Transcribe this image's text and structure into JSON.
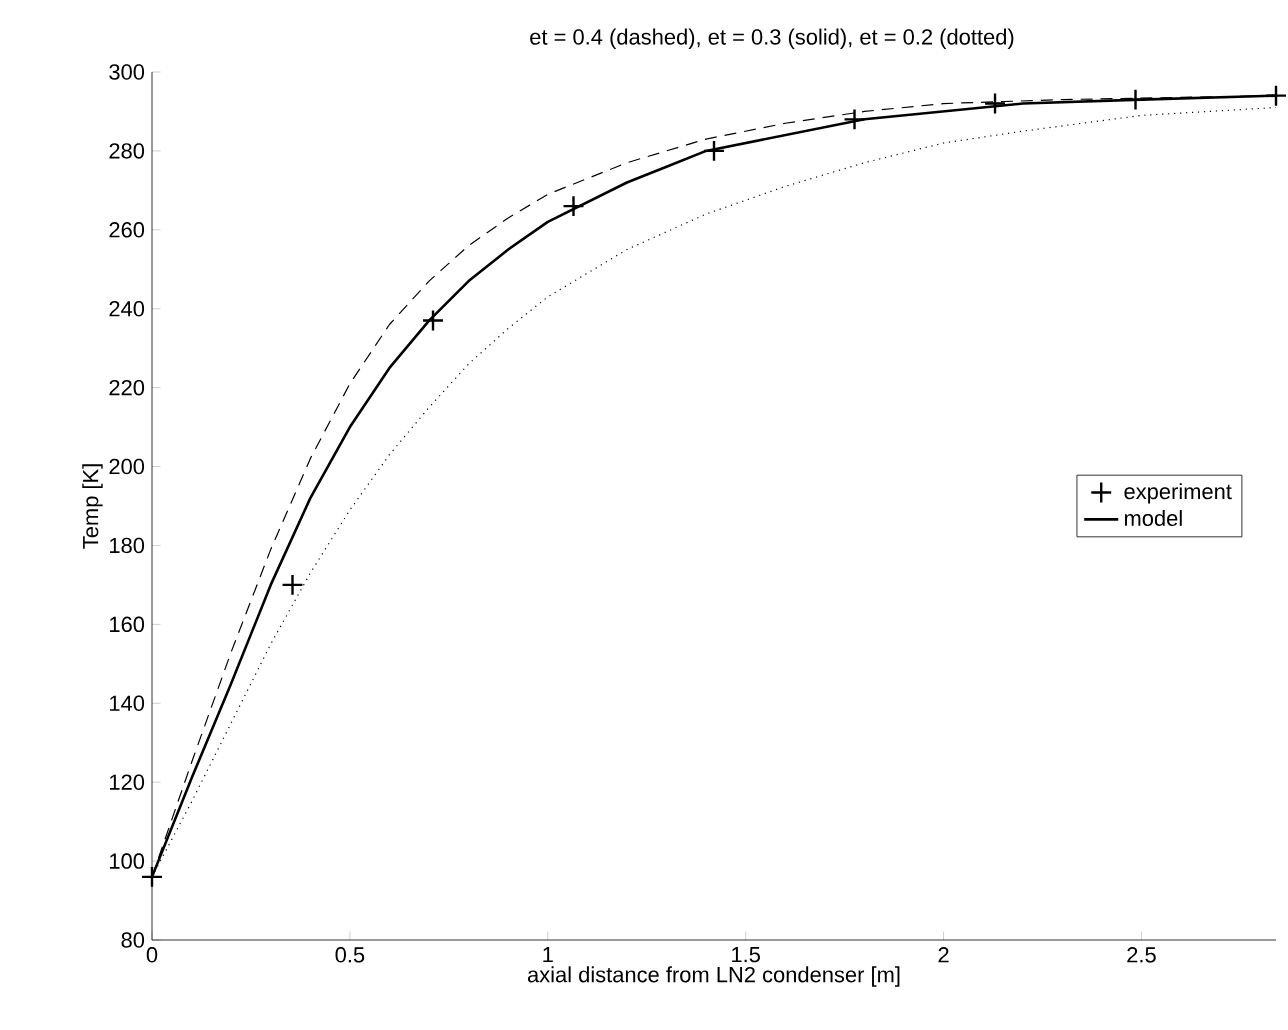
{
  "chart_data": {
    "type": "line",
    "title": "et = 0.4 (dashed), et = 0.3 (solid), et = 0.2 (dotted)",
    "xlabel": "axial distance from LN2 condenser [m]",
    "ylabel": "Temp [K]",
    "xlim": [
      0,
      2.84
    ],
    "ylim": [
      80,
      300
    ],
    "xticks": [
      0,
      0.5,
      1,
      1.5,
      2,
      2.5
    ],
    "yticks": [
      80,
      100,
      120,
      140,
      160,
      180,
      200,
      220,
      240,
      260,
      280,
      300
    ],
    "legend": "right",
    "grid": false,
    "series": [
      {
        "name": "experiment",
        "type": "scatter",
        "marker": "cross",
        "color": "#000000",
        "x": [
          0,
          0.355,
          0.71,
          1.065,
          1.42,
          1.775,
          2.13,
          2.485,
          2.84
        ],
        "values": [
          96,
          170,
          237,
          266,
          280,
          288,
          292,
          293,
          294
        ]
      },
      {
        "name": "model",
        "line_style": "solid",
        "marker": "none",
        "color": "#000000",
        "x": [
          0,
          0.1,
          0.2,
          0.3,
          0.4,
          0.5,
          0.6,
          0.7,
          0.8,
          0.9,
          1.0,
          1.1,
          1.2,
          1.3,
          1.4,
          1.6,
          1.8,
          2.0,
          2.2,
          2.5,
          2.84
        ],
        "values": [
          96,
          121,
          145,
          170,
          192,
          210,
          225,
          237,
          247,
          255,
          262,
          267,
          272,
          276,
          280,
          284,
          288,
          290,
          292,
          293,
          294
        ]
      },
      {
        "line_style": "dashed",
        "marker": "none",
        "color": "#000000",
        "x": [
          0,
          0.1,
          0.2,
          0.3,
          0.4,
          0.5,
          0.6,
          0.7,
          0.8,
          0.9,
          1.0,
          1.2,
          1.4,
          1.6,
          1.8,
          2.0,
          2.3,
          2.84
        ],
        "values": [
          96,
          125,
          153,
          179,
          202,
          221,
          236,
          247,
          256,
          263,
          269,
          277,
          283,
          287,
          290,
          292,
          293,
          294
        ]
      },
      {
        "line_style": "dotted",
        "marker": "none",
        "color": "#000000",
        "x": [
          0,
          0.1,
          0.2,
          0.3,
          0.4,
          0.5,
          0.6,
          0.7,
          0.8,
          0.9,
          1.0,
          1.2,
          1.4,
          1.6,
          1.8,
          2.0,
          2.2,
          2.5,
          2.84
        ],
        "values": [
          96,
          115,
          135,
          155,
          173,
          189,
          203,
          215,
          226,
          235,
          243,
          255,
          264,
          271,
          277,
          282,
          285,
          289,
          291
        ]
      }
    ]
  }
}
